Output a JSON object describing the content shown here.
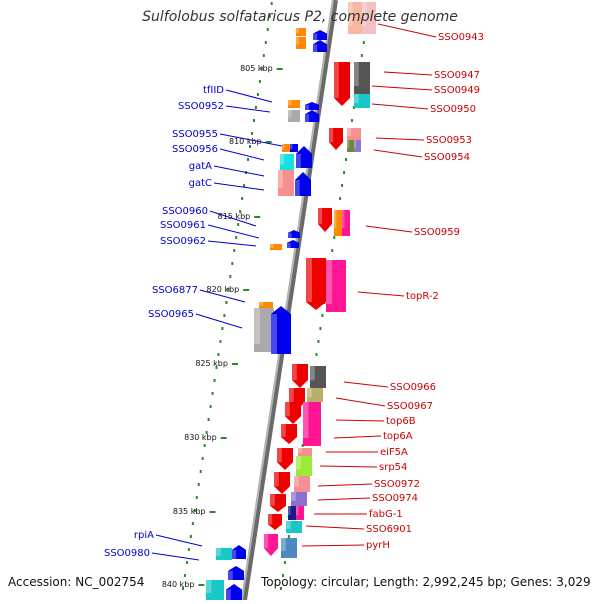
{
  "title": "Sulfolobus solfataricus P2, complete genome",
  "footer": {
    "accession": "Accession: NC_002754",
    "topology": "Topology: circular; Length: 2,992,245 bp; Genes: 3,029"
  },
  "ticks": [
    "805 kbp",
    "810 kbp",
    "815 kbp",
    "820 kbp",
    "825 kbp",
    "830 kbp",
    "835 kbp",
    "840 kbp"
  ],
  "left_labels": [
    "tfIID",
    "SSO0952",
    "SSO0955",
    "SSO0956",
    "gatA",
    "gatC",
    "SSO0960",
    "SSO0961",
    "SSO0962",
    "SSO6877",
    "SSO0965",
    "rpiA",
    "SSO0980"
  ],
  "right_labels": [
    "SSO0943",
    "SSO0947",
    "SSO0949",
    "SSO0950",
    "SSO0953",
    "SSO0954",
    "SSO0959",
    "topR-2",
    "SSO0966",
    "SSO0967",
    "top6B",
    "top6A",
    "eiF5A",
    "srp54",
    "SSO0972",
    "SSO0974",
    "fabG-1",
    "SSO6901",
    "pyrH"
  ],
  "colors": {
    "left_label": "#0000cc",
    "right_label": "#cc0000",
    "forward_strand": "#0000ee",
    "reverse_strand": "#ee0000",
    "backbone": "#888888",
    "tick_mark": "#2a8a2a"
  }
}
